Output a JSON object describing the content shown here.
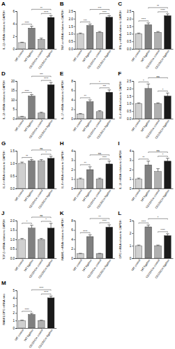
{
  "chart_data": [
    {
      "type": "bar",
      "title": "A",
      "y_label": "IL-1β mRNA relative to GAPDH",
      "categories": [
        "WT control",
        "WT ligation",
        "CD11bCre control",
        "CD11bCre ligation"
      ],
      "values": [
        1,
        3.3,
        1.5,
        5.0
      ],
      "errors": [
        0.05,
        0.3,
        0.2,
        0.3
      ],
      "colors": [
        "#d0d0d0",
        "#808080",
        "#b0b0b0",
        "#1a1a1a"
      ],
      "ylim": [
        0,
        6
      ],
      "yticks": [
        0,
        2,
        4,
        6
      ],
      "annotations": [
        {
          "between": [
            0,
            1
          ],
          "text": "****"
        },
        {
          "between": [
            2,
            3
          ],
          "text": "****"
        },
        {
          "between": [
            1,
            3
          ],
          "text": "**"
        }
      ]
    },
    {
      "type": "bar",
      "title": "B",
      "y_label": "TNF-α mRNA relative to GAPDH",
      "categories": [
        "WT control",
        "WT ligation",
        "CD11bCre control",
        "CD11bCre ligation"
      ],
      "values": [
        1,
        1.55,
        1.1,
        2.1
      ],
      "errors": [
        0.05,
        0.1,
        0.05,
        0.1
      ],
      "colors": [
        "#d0d0d0",
        "#808080",
        "#b0b0b0",
        "#1a1a1a"
      ],
      "ylim": [
        0,
        2.5
      ],
      "yticks": [
        {
          "value": 0,
          "label": "0.0"
        },
        0.5,
        {
          "value": 1,
          "label": "1.0"
        },
        1.5,
        {
          "value": 2,
          "label": "2.0"
        },
        2.5
      ],
      "annotations": [
        {
          "between": [
            0,
            1
          ],
          "text": "***"
        },
        {
          "between": [
            2,
            3
          ],
          "text": "****"
        },
        {
          "between": [
            1,
            3
          ],
          "text": "***"
        }
      ]
    },
    {
      "type": "bar",
      "title": "C",
      "y_label": "IFN-γ mRNA relative to GAPDH",
      "categories": [
        "WT control",
        "WT ligation",
        "CD11bCre control",
        "CD11bCre ligation"
      ],
      "values": [
        1,
        1.6,
        1.1,
        2.2
      ],
      "errors": [
        0.05,
        0.12,
        0.05,
        0.12
      ],
      "colors": [
        "#d0d0d0",
        "#808080",
        "#b0b0b0",
        "#1a1a1a"
      ],
      "ylim": [
        0,
        2.5
      ],
      "yticks": [
        {
          "value": 0,
          "label": "0.0"
        },
        0.5,
        {
          "value": 1,
          "label": "1.0"
        },
        1.5,
        {
          "value": 2,
          "label": "2.0"
        },
        2.5
      ],
      "annotations": [
        {
          "between": [
            0,
            1
          ],
          "text": "****"
        },
        {
          "between": [
            2,
            3
          ],
          "text": "****"
        },
        {
          "between": [
            1,
            3
          ],
          "text": "**"
        }
      ]
    },
    {
      "type": "bar",
      "title": "D",
      "y_label": "IL-12 mRNA relative to GAPDH",
      "categories": [
        "WT control",
        "WT ligation",
        "CD11bCre control",
        "CD11bCre ligation"
      ],
      "values": [
        1,
        12,
        3,
        18
      ],
      "errors": [
        0.2,
        0.8,
        0.4,
        1.2
      ],
      "colors": [
        "#d0d0d0",
        "#808080",
        "#b0b0b0",
        "#1a1a1a"
      ],
      "ylim": [
        0,
        20
      ],
      "yticks": [
        0,
        5,
        10,
        15,
        20
      ],
      "annotations": [
        {
          "between": [
            0,
            1
          ],
          "text": "****"
        },
        {
          "between": [
            2,
            3
          ],
          "text": "****"
        },
        {
          "between": [
            1,
            3
          ],
          "text": "***"
        }
      ]
    },
    {
      "type": "bar",
      "title": "E",
      "y_label": "IL-17 mRNA relative to GAPDH",
      "categories": [
        "WT control",
        "WT ligation",
        "CD11bCre control",
        "CD11bCre ligation"
      ],
      "values": [
        1,
        3.6,
        1.5,
        5.6
      ],
      "errors": [
        0.1,
        0.4,
        0.2,
        0.5
      ],
      "colors": [
        "#d0d0d0",
        "#808080",
        "#b0b0b0",
        "#1a1a1a"
      ],
      "ylim": [
        0,
        8
      ],
      "yticks": [
        0,
        2,
        4,
        6,
        8
      ],
      "annotations": [
        {
          "between": [
            0,
            1
          ],
          "text": "**"
        },
        {
          "between": [
            2,
            3
          ],
          "text": "***"
        },
        {
          "between": [
            1,
            3
          ],
          "text": "*"
        }
      ]
    },
    {
      "type": "bar",
      "title": "F",
      "y_label": "IL-4 mRNA relative to GAPDH",
      "categories": [
        "WT control",
        "WT ligation",
        "CD11bCre control",
        "CD11bCre ligation"
      ],
      "values": [
        1,
        2.0,
        1.0,
        1.5
      ],
      "errors": [
        0.05,
        0.3,
        0.05,
        0.2
      ],
      "colors": [
        "#d0d0d0",
        "#808080",
        "#b0b0b0",
        "#1a1a1a"
      ],
      "ylim": [
        0,
        2.5
      ],
      "yticks": [
        {
          "value": 0,
          "label": "0.0"
        },
        0.5,
        {
          "value": 1,
          "label": "1.0"
        },
        1.5,
        {
          "value": 2,
          "label": "2.0"
        },
        2.5
      ],
      "annotations": [
        {
          "between": [
            0,
            1
          ],
          "text": "*"
        },
        {
          "between": [
            2,
            3
          ],
          "text": "*"
        },
        {
          "between": [
            1,
            3
          ],
          "text": "ns"
        }
      ]
    },
    {
      "type": "bar",
      "title": "G",
      "y_label": "IL-6 mRNA relative to GAPDH",
      "categories": [
        "WT control",
        "WT ligation",
        "CD11bCre control",
        "CD11bCre ligation"
      ],
      "values": [
        1,
        1.1,
        1.1,
        1.2
      ],
      "errors": [
        0.05,
        0.05,
        0.05,
        0.08
      ],
      "colors": [
        "#d0d0d0",
        "#808080",
        "#b0b0b0",
        "#1a1a1a"
      ],
      "ylim": [
        0,
        1.5
      ],
      "yticks": [
        {
          "value": 0,
          "label": "0.0"
        },
        0.5,
        {
          "value": 1,
          "label": "1.0"
        },
        1.5
      ],
      "annotations": [
        {
          "between": [
            0,
            1
          ],
          "text": "**"
        },
        {
          "between": [
            2,
            3
          ],
          "text": "*"
        },
        {
          "between": [
            1,
            3
          ],
          "text": "ns"
        }
      ]
    },
    {
      "type": "bar",
      "title": "H",
      "y_label": "IL-8 mRNA relative to GAPDH",
      "categories": [
        "WT control",
        "WT ligation",
        "CD11bCre control",
        "CD11bCre ligation"
      ],
      "values": [
        1,
        2.0,
        1.0,
        2.6
      ],
      "errors": [
        0.1,
        0.3,
        0.1,
        0.3
      ],
      "colors": [
        "#d0d0d0",
        "#808080",
        "#b0b0b0",
        "#1a1a1a"
      ],
      "ylim": [
        0,
        4
      ],
      "yticks": [
        0,
        1,
        2,
        3,
        4
      ],
      "annotations": [
        {
          "between": [
            0,
            1
          ],
          "text": "**"
        },
        {
          "between": [
            2,
            3
          ],
          "text": "****"
        },
        {
          "between": [
            1,
            3
          ],
          "text": "ns"
        }
      ]
    },
    {
      "type": "bar",
      "title": "I",
      "y_label": "IL-10 mRNA relative to GAPDH",
      "categories": [
        "WT control",
        "WT ligation",
        "CD11bCre control",
        "CD11bCre ligation"
      ],
      "values": [
        1,
        2.5,
        1.8,
        2.9
      ],
      "errors": [
        0.1,
        0.4,
        0.3,
        0.3
      ],
      "colors": [
        "#d0d0d0",
        "#808080",
        "#b0b0b0",
        "#1a1a1a"
      ],
      "ylim": [
        0,
        4
      ],
      "yticks": [
        0,
        1,
        2,
        3,
        4
      ],
      "annotations": [
        {
          "between": [
            0,
            1
          ],
          "text": "**"
        },
        {
          "between": [
            2,
            3
          ],
          "text": "*"
        },
        {
          "between": [
            1,
            3
          ],
          "text": "ns"
        }
      ]
    },
    {
      "type": "bar",
      "title": "J",
      "y_label": "TGF-β mRNA relative to GAPDH",
      "categories": [
        "WT control",
        "WT ligation",
        "CD11bCre control",
        "CD11bCre ligation"
      ],
      "values": [
        1,
        1.6,
        1.0,
        1.6
      ],
      "errors": [
        0.05,
        0.15,
        0.05,
        0.25
      ],
      "colors": [
        "#d0d0d0",
        "#808080",
        "#b0b0b0",
        "#1a1a1a"
      ],
      "ylim": [
        0,
        2
      ],
      "yticks": [
        {
          "value": 0,
          "label": "0.0"
        },
        0.5,
        {
          "value": 1,
          "label": "1.0"
        },
        1.5,
        {
          "value": 2,
          "label": "2.0"
        }
      ],
      "annotations": [
        {
          "between": [
            0,
            1
          ],
          "text": "*"
        },
        {
          "between": [
            2,
            3
          ],
          "text": "*"
        },
        {
          "between": [
            1,
            3
          ],
          "text": "ns"
        }
      ]
    },
    {
      "type": "bar",
      "title": "K",
      "y_label": "RANKL mRNA relative to GAPDH",
      "categories": [
        "WT control",
        "WT ligation",
        "CD11bCre control",
        "CD11bCre ligation"
      ],
      "values": [
        1,
        4.6,
        1.0,
        6.6
      ],
      "errors": [
        0.05,
        0.4,
        0.05,
        0.5
      ],
      "colors": [
        "#d0d0d0",
        "#808080",
        "#b0b0b0",
        "#1a1a1a"
      ],
      "ylim": [
        0,
        8
      ],
      "yticks": [
        0,
        2,
        4,
        6,
        8
      ],
      "annotations": [
        {
          "between": [
            0,
            1
          ],
          "text": "****"
        },
        {
          "between": [
            2,
            3
          ],
          "text": "****"
        },
        {
          "between": [
            1,
            3
          ],
          "text": "**"
        }
      ]
    },
    {
      "type": "bar",
      "title": "L",
      "y_label": "OPG mRNA relative to GAPDH",
      "categories": [
        "WT control",
        "WT ligation",
        "CD11bCre control",
        "CD11bCre ligation"
      ],
      "values": [
        1,
        2.5,
        1.0,
        1.8
      ],
      "errors": [
        0.05,
        0.15,
        0.05,
        0.15
      ],
      "colors": [
        "#d0d0d0",
        "#808080",
        "#b0b0b0",
        "#1a1a1a"
      ],
      "ylim": [
        0,
        3
      ],
      "yticks": [
        0,
        1,
        2,
        3
      ],
      "annotations": [
        {
          "between": [
            0,
            1
          ],
          "text": "****"
        },
        {
          "between": [
            2,
            3
          ],
          "text": "****"
        },
        {
          "between": [
            1,
            3
          ],
          "text": "*"
        }
      ]
    },
    {
      "type": "bar",
      "title": "M",
      "y_label": "RANKL/OPG mRNA ratio",
      "categories": [
        "WT control",
        "WT ligation",
        "CD11bCre control",
        "CD11bCre ligation"
      ],
      "values": [
        1,
        1.8,
        1.0,
        4.0
      ],
      "errors": [
        0.05,
        0.15,
        0.05,
        0.25
      ],
      "colors": [
        "#d0d0d0",
        "#808080",
        "#b0b0b0",
        "#1a1a1a"
      ],
      "ylim": [
        0,
        5
      ],
      "yticks": [
        0,
        1,
        2,
        3,
        4,
        5
      ],
      "annotations": [
        {
          "between": [
            0,
            1
          ],
          "text": "****"
        },
        {
          "between": [
            2,
            3
          ],
          "text": "****"
        },
        {
          "between": [
            1,
            3
          ],
          "text": "****"
        }
      ]
    }
  ]
}
